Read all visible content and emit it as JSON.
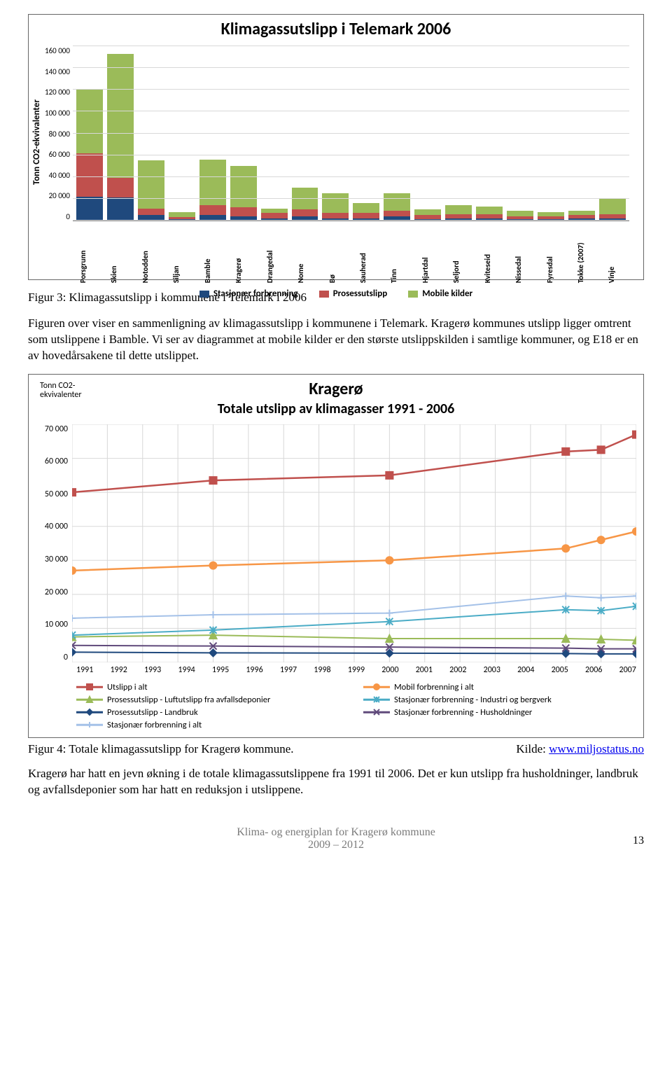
{
  "chart1": {
    "type": "stacked-bar",
    "title": "Klimagassutslipp i Telemark 2006",
    "ylabel": "Tonn CO2-ekvivalenter",
    "ylim": [
      0,
      160000
    ],
    "ytick_step": 20000,
    "yticks": [
      "160 000",
      "140 000",
      "120 000",
      "100 000",
      "80 000",
      "60 000",
      "40 000",
      "20 000",
      "0"
    ],
    "categories": [
      "Porsgrunn",
      "Skien",
      "Notodden",
      "Siljan",
      "Bamble",
      "Kragerø",
      "Drangedal",
      "Nome",
      "Bø",
      "Sauherad",
      "Tinn",
      "Hjartdal",
      "Seljord",
      "Kviteseid",
      "Nissedal",
      "Fyresdal",
      "Tokke (2007)",
      "Vinje"
    ],
    "series": [
      {
        "name": "Stasjonær forbrenning",
        "color": "#1f497d",
        "data": [
          22000,
          21000,
          5000,
          1000,
          5000,
          4000,
          2000,
          4000,
          2000,
          2000,
          4000,
          1000,
          2000,
          2000,
          1000,
          1000,
          2000,
          2000
        ]
      },
      {
        "name": "Prosessutslipp",
        "color": "#c0504d",
        "data": [
          40000,
          18000,
          6000,
          2000,
          9000,
          8000,
          5000,
          6000,
          5000,
          5000,
          5000,
          4000,
          4000,
          4000,
          3000,
          3000,
          3000,
          4000
        ]
      },
      {
        "name": "Mobile kilder",
        "color": "#9bbb59",
        "data": [
          58000,
          114000,
          44000,
          5000,
          42000,
          38000,
          4000,
          20000,
          18000,
          9000,
          16000,
          5000,
          8000,
          7000,
          5000,
          4000,
          4000,
          14000
        ]
      }
    ],
    "legend": [
      {
        "label": "Stasjonær forbrenning",
        "color": "#1f497d"
      },
      {
        "label": "Prosessutslipp",
        "color": "#c0504d"
      },
      {
        "label": "Mobile kilder",
        "color": "#9bbb59"
      }
    ],
    "background_color": "#ffffff",
    "grid_color": "#d8d8d8"
  },
  "caption1": "Figur 3: Klimagassutslipp i kommunene i Telemark i 2006",
  "para1": "Figuren over viser en sammenligning av klimagassutslipp i kommunene i Telemark. Kragerø kommunes utslipp ligger omtrent som utslippene i Bamble. Vi ser av diagrammet at mobile kilder er den største utslippskilden i samtlige kommuner, og E18 er en av hovedårsakene til dette utslippet.",
  "chart2": {
    "type": "line",
    "y_axis_title_l1": "Tonn CO2-",
    "y_axis_title_l2": "ekvivalenter",
    "title": "Kragerø",
    "subtitle": "Totale utslipp av klimagasser 1991 - 2006",
    "ylim": [
      0,
      70000
    ],
    "ytick_step": 10000,
    "yticks": [
      "70 000",
      "60 000",
      "50 000",
      "40 000",
      "30 000",
      "20 000",
      "10 000",
      "0"
    ],
    "xvalues": [
      1991,
      1992,
      1993,
      1994,
      1995,
      1996,
      1997,
      1998,
      1999,
      2000,
      2001,
      2002,
      2003,
      2004,
      2005,
      2006,
      2007
    ],
    "xlabels": [
      "1991",
      "1992",
      "1993",
      "1994",
      "1995",
      "1996",
      "1997",
      "1998",
      "1999",
      "2000",
      "2001",
      "2002",
      "2003",
      "2004",
      "2005",
      "2006",
      "2007"
    ],
    "series": [
      {
        "name": "Utslipp i alt",
        "color": "#c0504d",
        "marker": "square",
        "line_width": 2.5,
        "points": [
          [
            1991,
            50000
          ],
          [
            1995,
            53500
          ],
          [
            2000,
            55000
          ],
          [
            2005,
            62000
          ],
          [
            2006,
            62500
          ],
          [
            2007,
            67000
          ]
        ]
      },
      {
        "name": "Mobil forbrenning i alt",
        "color": "#f79646",
        "marker": "circle",
        "line_width": 2.5,
        "points": [
          [
            1991,
            27000
          ],
          [
            1995,
            28500
          ],
          [
            2000,
            30000
          ],
          [
            2005,
            33500
          ],
          [
            2006,
            36000
          ],
          [
            2007,
            38500
          ]
        ]
      },
      {
        "name": "Prosessutslipp - Luftutslipp fra avfallsdeponier",
        "color": "#9bbb59",
        "marker": "triangle",
        "line_width": 2,
        "points": [
          [
            1991,
            7500
          ],
          [
            1995,
            8000
          ],
          [
            2000,
            7000
          ],
          [
            2005,
            7000
          ],
          [
            2006,
            6800
          ],
          [
            2007,
            6500
          ]
        ]
      },
      {
        "name": "Stasjonær forbrenning  - Industri og bergverk",
        "color": "#4bacc6",
        "marker": "star",
        "line_width": 2,
        "points": [
          [
            1991,
            8000
          ],
          [
            1995,
            9500
          ],
          [
            2000,
            12000
          ],
          [
            2005,
            15500
          ],
          [
            2006,
            15200
          ],
          [
            2007,
            16500
          ]
        ]
      },
      {
        "name": "Prosessutslipp - Landbruk",
        "color": "#1f497d",
        "marker": "diamond",
        "line_width": 2,
        "points": [
          [
            1991,
            3000
          ],
          [
            1995,
            2800
          ],
          [
            2000,
            2700
          ],
          [
            2005,
            2600
          ],
          [
            2006,
            2500
          ],
          [
            2007,
            2500
          ]
        ]
      },
      {
        "name": "Stasjonær forbrenning - Husholdninger",
        "color": "#604a7b",
        "marker": "x",
        "line_width": 2,
        "points": [
          [
            1991,
            5000
          ],
          [
            1995,
            4800
          ],
          [
            2000,
            4500
          ],
          [
            2005,
            4200
          ],
          [
            2006,
            4000
          ],
          [
            2007,
            4000
          ]
        ]
      },
      {
        "name": "Stasjonær forbrenning i alt",
        "color": "#a4c1e8",
        "marker": "plus",
        "line_width": 2,
        "points": [
          [
            1991,
            13000
          ],
          [
            1995,
            14000
          ],
          [
            2000,
            14500
          ],
          [
            2005,
            19500
          ],
          [
            2006,
            19000
          ],
          [
            2007,
            19500
          ]
        ]
      }
    ],
    "legend": [
      {
        "label": "Utslipp i alt",
        "color": "#c0504d",
        "marker": "square"
      },
      {
        "label": "Mobil forbrenning i alt",
        "color": "#f79646",
        "marker": "circle"
      },
      {
        "label": "Prosessutslipp - Luftutslipp fra avfallsdeponier",
        "color": "#9bbb59",
        "marker": "triangle"
      },
      {
        "label": "Stasjonær forbrenning  - Industri og bergverk",
        "color": "#4bacc6",
        "marker": "star"
      },
      {
        "label": "Prosessutslipp - Landbruk",
        "color": "#1f497d",
        "marker": "diamond"
      },
      {
        "label": "Stasjonær forbrenning - Husholdninger",
        "color": "#604a7b",
        "marker": "x"
      },
      {
        "label": "Stasjonær forbrenning i alt",
        "color": "#a4c1e8",
        "marker": "plus"
      }
    ],
    "background_color": "#ffffff",
    "grid_color": "#d8d8d8"
  },
  "caption2_left": "Figur 4: Totale klimagassutslipp for Kragerø kommune.",
  "caption2_right_prefix": "Kilde: ",
  "caption2_link": "www.miljostatus.no",
  "para2": "Kragerø har hatt en jevn økning i de totale klimagassutslippene fra 1991 til 2006. Det er kun utslipp fra husholdninger, landbruk og avfallsdeponier som har hatt en reduksjon i utslippene.",
  "footer_l1": "Klima- og energiplan for Kragerø kommune",
  "footer_l2": "2009 – 2012",
  "page_number": "13"
}
